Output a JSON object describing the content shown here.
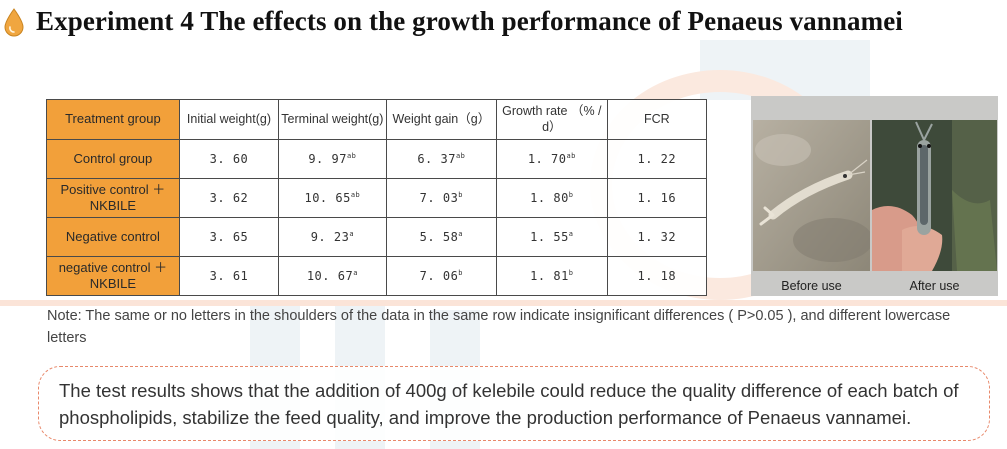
{
  "title": "Experiment 4  The effects on the growth performance of Penaeus vannamei",
  "icon": "oil-drop-icon",
  "colors": {
    "header_cell": "#f2a03a",
    "drop": "#f0a640",
    "border": "#e8886a"
  },
  "table": {
    "headers": [
      "Treatment group",
      "Initial weight(g)",
      "Terminal weight(g)",
      "Weight gain（g）",
      "Growth rate （% / d）",
      "FCR"
    ],
    "rows": [
      {
        "group": "Control group",
        "initial": "3. 60",
        "terminal": "9. 97",
        "terminal_sup": "ab",
        "gain": "6. 37",
        "gain_sup": "ab",
        "rate": "1. 70",
        "rate_sup": "ab",
        "fcr": "1. 22"
      },
      {
        "group": "Positive control ＋NKBILE",
        "initial": "3. 62",
        "terminal": "10. 65",
        "terminal_sup": "ab",
        "gain": "7. 03",
        "gain_sup": "b",
        "rate": "1. 80",
        "rate_sup": "b",
        "fcr": "1. 16"
      },
      {
        "group": "Negative control",
        "initial": "3. 65",
        "terminal": "9. 23",
        "terminal_sup": "a",
        "gain": "5. 58",
        "gain_sup": "a",
        "rate": "1. 55",
        "rate_sup": "a",
        "fcr": "1. 32"
      },
      {
        "group": "negative control ＋NKBILE",
        "initial": "3. 61",
        "terminal": "10. 67",
        "terminal_sup": "a",
        "gain": "7. 06",
        "gain_sup": "b",
        "rate": "1. 81",
        "rate_sup": "b",
        "fcr": "1. 18"
      }
    ]
  },
  "photos": {
    "before_caption": "Before use",
    "after_caption": "After use"
  },
  "note": "Note: The same or no letters in the shoulders of the data in the same row indicate insignificant differences ( P>0.05 ), and different lowercase letters",
  "conclusion": "The test results shows that the addition of 400g of kelebile could reduce the quality difference of each batch of phospholipids, stabilize the feed quality, and improve the production performance of Penaeus vannamei."
}
